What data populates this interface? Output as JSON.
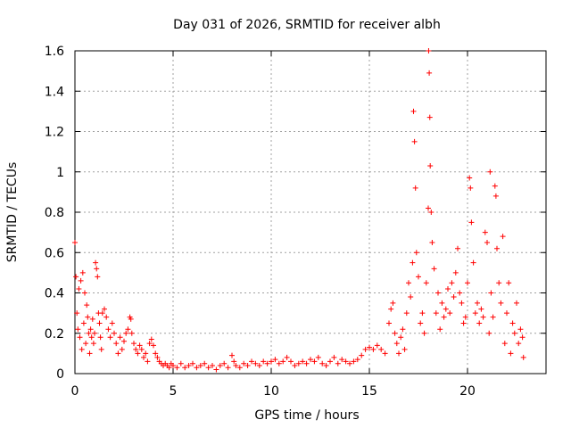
{
  "chart_data": {
    "type": "scatter",
    "title": "Day 031 of 2026, SRMTID for receiver albh",
    "xlabel": "GPS time / hours",
    "ylabel": "SRMTID / TECUs",
    "xlim": [
      0,
      24
    ],
    "ylim": [
      0,
      1.6
    ],
    "xticks": [
      0,
      5,
      10,
      15,
      20
    ],
    "xtick_labels": [
      "0",
      "5",
      "10",
      "15",
      "20"
    ],
    "yticks": [
      0,
      0.2,
      0.4,
      0.6,
      0.8,
      1.0,
      1.2,
      1.4,
      1.6
    ],
    "ytick_labels": [
      "0",
      "0.2",
      "0.4",
      "0.6",
      "0.8",
      "1",
      "1.2",
      "1.4",
      "1.6"
    ],
    "grid": true,
    "marker": "+",
    "colors": {
      "series": "#ff0000",
      "grid": "#a0a0a0",
      "axis": "#000000"
    },
    "series": [
      {
        "name": "SRMTID",
        "points": [
          [
            0.0,
            0.65
          ],
          [
            0.05,
            0.48
          ],
          [
            0.1,
            0.3
          ],
          [
            0.15,
            0.22
          ],
          [
            0.2,
            0.42
          ],
          [
            0.25,
            0.18
          ],
          [
            0.3,
            0.46
          ],
          [
            0.35,
            0.12
          ],
          [
            0.4,
            0.5
          ],
          [
            0.45,
            0.25
          ],
          [
            0.5,
            0.4
          ],
          [
            0.55,
            0.15
          ],
          [
            0.6,
            0.34
          ],
          [
            0.65,
            0.28
          ],
          [
            0.7,
            0.2
          ],
          [
            0.75,
            0.1
          ],
          [
            0.8,
            0.22
          ],
          [
            0.85,
            0.18
          ],
          [
            0.9,
            0.27
          ],
          [
            0.95,
            0.15
          ],
          [
            1.0,
            0.2
          ],
          [
            1.05,
            0.55
          ],
          [
            1.1,
            0.52
          ],
          [
            1.15,
            0.48
          ],
          [
            1.2,
            0.3
          ],
          [
            1.25,
            0.25
          ],
          [
            1.3,
            0.18
          ],
          [
            1.35,
            0.12
          ],
          [
            1.4,
            0.3
          ],
          [
            1.5,
            0.32
          ],
          [
            1.6,
            0.28
          ],
          [
            1.7,
            0.22
          ],
          [
            1.8,
            0.18
          ],
          [
            1.9,
            0.25
          ],
          [
            2.0,
            0.2
          ],
          [
            2.1,
            0.15
          ],
          [
            2.2,
            0.1
          ],
          [
            2.3,
            0.18
          ],
          [
            2.4,
            0.12
          ],
          [
            2.5,
            0.16
          ],
          [
            2.6,
            0.2
          ],
          [
            2.7,
            0.22
          ],
          [
            2.8,
            0.28
          ],
          [
            2.85,
            0.27
          ],
          [
            2.9,
            0.2
          ],
          [
            3.0,
            0.15
          ],
          [
            3.1,
            0.12
          ],
          [
            3.2,
            0.1
          ],
          [
            3.3,
            0.14
          ],
          [
            3.4,
            0.12
          ],
          [
            3.5,
            0.08
          ],
          [
            3.6,
            0.1
          ],
          [
            3.7,
            0.06
          ],
          [
            3.8,
            0.15
          ],
          [
            3.9,
            0.17
          ],
          [
            4.0,
            0.14
          ],
          [
            4.1,
            0.1
          ],
          [
            4.2,
            0.08
          ],
          [
            4.3,
            0.06
          ],
          [
            4.4,
            0.05
          ],
          [
            4.5,
            0.04
          ],
          [
            4.6,
            0.05
          ],
          [
            4.7,
            0.04
          ],
          [
            4.8,
            0.03
          ],
          [
            4.9,
            0.05
          ],
          [
            5.0,
            0.04
          ],
          [
            5.2,
            0.03
          ],
          [
            5.4,
            0.05
          ],
          [
            5.6,
            0.03
          ],
          [
            5.8,
            0.04
          ],
          [
            6.0,
            0.05
          ],
          [
            6.2,
            0.03
          ],
          [
            6.4,
            0.04
          ],
          [
            6.6,
            0.05
          ],
          [
            6.8,
            0.03
          ],
          [
            7.0,
            0.04
          ],
          [
            7.2,
            0.02
          ],
          [
            7.4,
            0.04
          ],
          [
            7.6,
            0.05
          ],
          [
            7.8,
            0.03
          ],
          [
            8.0,
            0.09
          ],
          [
            8.1,
            0.06
          ],
          [
            8.2,
            0.04
          ],
          [
            8.4,
            0.03
          ],
          [
            8.6,
            0.05
          ],
          [
            8.8,
            0.04
          ],
          [
            9.0,
            0.06
          ],
          [
            9.2,
            0.05
          ],
          [
            9.4,
            0.04
          ],
          [
            9.6,
            0.06
          ],
          [
            9.8,
            0.05
          ],
          [
            10.0,
            0.06
          ],
          [
            10.2,
            0.07
          ],
          [
            10.4,
            0.05
          ],
          [
            10.6,
            0.06
          ],
          [
            10.8,
            0.08
          ],
          [
            11.0,
            0.06
          ],
          [
            11.2,
            0.04
          ],
          [
            11.4,
            0.05
          ],
          [
            11.6,
            0.06
          ],
          [
            11.8,
            0.05
          ],
          [
            12.0,
            0.07
          ],
          [
            12.2,
            0.06
          ],
          [
            12.4,
            0.08
          ],
          [
            12.6,
            0.05
          ],
          [
            12.8,
            0.04
          ],
          [
            13.0,
            0.06
          ],
          [
            13.2,
            0.08
          ],
          [
            13.4,
            0.05
          ],
          [
            13.6,
            0.07
          ],
          [
            13.8,
            0.06
          ],
          [
            14.0,
            0.05
          ],
          [
            14.2,
            0.06
          ],
          [
            14.4,
            0.07
          ],
          [
            14.6,
            0.09
          ],
          [
            14.8,
            0.12
          ],
          [
            15.0,
            0.13
          ],
          [
            15.2,
            0.12
          ],
          [
            15.4,
            0.14
          ],
          [
            15.6,
            0.12
          ],
          [
            15.8,
            0.1
          ],
          [
            16.0,
            0.25
          ],
          [
            16.1,
            0.32
          ],
          [
            16.2,
            0.35
          ],
          [
            16.3,
            0.2
          ],
          [
            16.4,
            0.15
          ],
          [
            16.5,
            0.1
          ],
          [
            16.6,
            0.18
          ],
          [
            16.7,
            0.22
          ],
          [
            16.8,
            0.12
          ],
          [
            16.9,
            0.3
          ],
          [
            17.0,
            0.45
          ],
          [
            17.1,
            0.38
          ],
          [
            17.2,
            0.55
          ],
          [
            17.25,
            1.3
          ],
          [
            17.3,
            1.15
          ],
          [
            17.35,
            0.92
          ],
          [
            17.4,
            0.6
          ],
          [
            17.5,
            0.48
          ],
          [
            17.6,
            0.25
          ],
          [
            17.7,
            0.3
          ],
          [
            17.8,
            0.2
          ],
          [
            17.9,
            0.45
          ],
          [
            18.0,
            0.82
          ],
          [
            18.02,
            1.6
          ],
          [
            18.05,
            1.49
          ],
          [
            18.08,
            1.27
          ],
          [
            18.1,
            1.03
          ],
          [
            18.15,
            0.8
          ],
          [
            18.2,
            0.65
          ],
          [
            18.3,
            0.52
          ],
          [
            18.4,
            0.3
          ],
          [
            18.5,
            0.4
          ],
          [
            18.6,
            0.22
          ],
          [
            18.7,
            0.35
          ],
          [
            18.8,
            0.28
          ],
          [
            18.9,
            0.32
          ],
          [
            19.0,
            0.42
          ],
          [
            19.1,
            0.3
          ],
          [
            19.2,
            0.45
          ],
          [
            19.3,
            0.38
          ],
          [
            19.4,
            0.5
          ],
          [
            19.5,
            0.62
          ],
          [
            19.6,
            0.4
          ],
          [
            19.7,
            0.35
          ],
          [
            19.8,
            0.25
          ],
          [
            19.9,
            0.28
          ],
          [
            20.0,
            0.45
          ],
          [
            20.1,
            0.97
          ],
          [
            20.15,
            0.92
          ],
          [
            20.2,
            0.75
          ],
          [
            20.3,
            0.55
          ],
          [
            20.4,
            0.3
          ],
          [
            20.5,
            0.35
          ],
          [
            20.6,
            0.25
          ],
          [
            20.7,
            0.32
          ],
          [
            20.8,
            0.28
          ],
          [
            20.9,
            0.7
          ],
          [
            21.0,
            0.65
          ],
          [
            21.1,
            0.2
          ],
          [
            21.15,
            1.0
          ],
          [
            21.2,
            0.4
          ],
          [
            21.3,
            0.28
          ],
          [
            21.4,
            0.93
          ],
          [
            21.45,
            0.88
          ],
          [
            21.5,
            0.62
          ],
          [
            21.6,
            0.45
          ],
          [
            21.7,
            0.35
          ],
          [
            21.8,
            0.68
          ],
          [
            21.9,
            0.15
          ],
          [
            22.0,
            0.3
          ],
          [
            22.1,
            0.45
          ],
          [
            22.2,
            0.1
          ],
          [
            22.3,
            0.25
          ],
          [
            22.4,
            0.2
          ],
          [
            22.5,
            0.35
          ],
          [
            22.6,
            0.15
          ],
          [
            22.7,
            0.22
          ],
          [
            22.8,
            0.18
          ],
          [
            22.85,
            0.08
          ]
        ]
      }
    ]
  }
}
